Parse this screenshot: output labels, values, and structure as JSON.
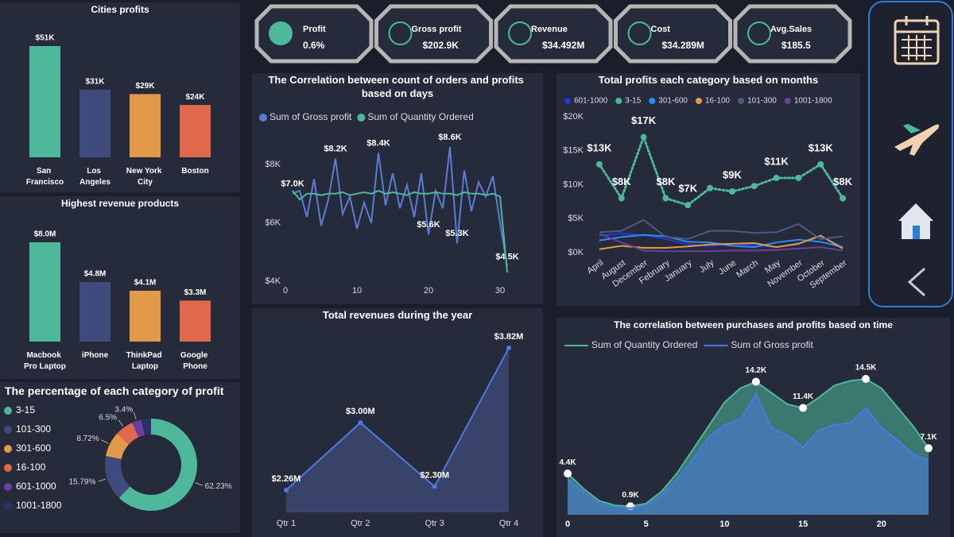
{
  "kpis": [
    {
      "label": "Profit",
      "value": "0.6%"
    },
    {
      "label": "Gross profit",
      "value": "$202.9K"
    },
    {
      "label": "Revenue",
      "value": "$34.492M"
    },
    {
      "label": "Cost",
      "value": "$34.289M"
    },
    {
      "label": "Avg.Sales",
      "value": "$185.5"
    }
  ],
  "chart_data": [
    {
      "type": "bar",
      "title": "Cities profits",
      "categories": [
        "San Francisco",
        "Los Angeles",
        "New York City",
        "Boston"
      ],
      "values": [
        51000,
        31000,
        29000,
        24000
      ],
      "value_labels": [
        "$51K",
        "$31K",
        "$29K",
        "$24K"
      ],
      "colors": [
        "#4db89a",
        "#3e4b7c",
        "#e09a48",
        "#e0694d"
      ]
    },
    {
      "type": "bar",
      "title": "Highest revenue products",
      "categories": [
        "Macbook Pro Laptop",
        "iPhone",
        "ThinkPad Laptop",
        "Google Phone"
      ],
      "values": [
        8000000,
        4800000,
        4100000,
        3300000
      ],
      "value_labels": [
        "$8.0M",
        "$4.8M",
        "$4.1M",
        "$3.3M"
      ],
      "colors": [
        "#4db89a",
        "#3e4b7c",
        "#e09a48",
        "#e0694d"
      ]
    },
    {
      "type": "donut",
      "title": "The percentage of each category of profit",
      "categories": [
        "3-15",
        "101-300",
        "301-600",
        "16-100",
        "601-1000",
        "1001-1800"
      ],
      "values": [
        62.23,
        15.79,
        8.72,
        6.5,
        3.4,
        3.36
      ],
      "value_labels": [
        "62.23%",
        "15.79%",
        "8.72%",
        "6.5%",
        "3.4%",
        null
      ],
      "colors": [
        "#4db89a",
        "#3e4b7c",
        "#e09a48",
        "#e0694d",
        "#6b3fa0",
        "#2c2f66"
      ]
    },
    {
      "type": "line",
      "title": "The Correlation between count of orders and profits based on days",
      "x": [
        1,
        2,
        3,
        4,
        5,
        6,
        7,
        8,
        9,
        10,
        11,
        12,
        13,
        14,
        15,
        16,
        17,
        18,
        19,
        20,
        21,
        22,
        23,
        24,
        25,
        26,
        27,
        28,
        29,
        30,
        31
      ],
      "xlim": [
        0,
        31
      ],
      "xticks": [
        0,
        10,
        20,
        30
      ],
      "ylim": [
        4000,
        9200
      ],
      "yticks": [
        {
          "value": 4000,
          "label": "$4K"
        },
        {
          "value": 6000,
          "label": "$6K"
        },
        {
          "value": 8000,
          "label": "$8K"
        }
      ],
      "series": [
        {
          "name": "Sum of Gross profit",
          "color": "#5b7bd5",
          "values": [
            7000,
            7100,
            6200,
            7500,
            5900,
            6800,
            8200,
            6300,
            6900,
            5800,
            6700,
            6000,
            8400,
            6600,
            7700,
            6500,
            7300,
            6200,
            7700,
            5600,
            7100,
            6500,
            8600,
            5300,
            7800,
            6400,
            7400,
            6900,
            7600,
            6000,
            4500
          ],
          "value_labels": [
            "$7.0K",
            null,
            null,
            null,
            null,
            null,
            "$8.2K",
            null,
            null,
            null,
            null,
            null,
            "$8.4K",
            null,
            null,
            null,
            null,
            null,
            null,
            "$5.6K",
            null,
            null,
            "$8.6K",
            "$5.3K",
            null,
            null,
            null,
            null,
            null,
            null,
            "$4.5K"
          ]
        },
        {
          "name": "Sum of Quantity Ordered",
          "color": "#4db89a",
          "values": [
            7100,
            6800,
            7000,
            7000,
            6950,
            7000,
            7000,
            7050,
            6950,
            7000,
            7050,
            7000,
            7100,
            7000,
            7050,
            7000,
            6950,
            7050,
            7000,
            7000,
            7050,
            7000,
            7000,
            6950,
            7050,
            7000,
            7000,
            6950,
            7000,
            6900,
            4300
          ]
        }
      ]
    },
    {
      "type": "line",
      "title": "Total profits each category based on months",
      "categories": [
        "April",
        "August",
        "December",
        "February",
        "January",
        "July",
        "June",
        "March",
        "May",
        "November",
        "October",
        "September"
      ],
      "ylim": [
        0,
        20000
      ],
      "yticks": [
        {
          "value": 0,
          "label": "$0K"
        },
        {
          "value": 5000,
          "label": "$5K"
        },
        {
          "value": 10000,
          "label": "$10K"
        },
        {
          "value": 15000,
          "label": "$15K"
        },
        {
          "value": 20000,
          "label": "$20K"
        }
      ],
      "series": [
        {
          "name": "601-1000",
          "color": "#2338d6",
          "values": [
            2500,
            2800,
            2600,
            2000,
            1200,
            900,
            1300,
            1100,
            800,
            1400,
            2300,
            900
          ]
        },
        {
          "name": "3-15",
          "color": "#4db89a",
          "line_style": "dotted",
          "values": [
            13000,
            8000,
            17000,
            8000,
            7000,
            9500,
            9000,
            9800,
            11000,
            11000,
            13000,
            8000
          ],
          "value_labels": [
            "$13K",
            "$8K",
            "$17K",
            "$8K",
            "$7K",
            null,
            "$9K",
            null,
            "$11K",
            null,
            "$13K",
            "$8K"
          ]
        },
        {
          "name": "301-600",
          "color": "#2d8cf0",
          "values": [
            1800,
            2300,
            2600,
            2400,
            1600,
            1500,
            1000,
            800,
            1500,
            1900,
            1600,
            800
          ]
        },
        {
          "name": "16-100",
          "color": "#e09a48",
          "values": [
            500,
            1000,
            700,
            700,
            900,
            1200,
            1300,
            1400,
            800,
            1300,
            2500,
            600
          ]
        },
        {
          "name": "101-300",
          "color": "#4c5a80",
          "values": [
            3000,
            3200,
            4800,
            2300,
            2000,
            3200,
            3200,
            2900,
            3000,
            4200,
            2000,
            2400
          ]
        },
        {
          "name": "1001-1800",
          "color": "#6b3fa0",
          "values": [
            2800,
            1500,
            300,
            200,
            200,
            200,
            300,
            300,
            400,
            600,
            800,
            300
          ]
        }
      ]
    },
    {
      "type": "area",
      "title": "Total revenues during the year",
      "categories": [
        "Qtr 1",
        "Qtr 2",
        "Qtr 3",
        "Qtr 4"
      ],
      "values": [
        2260000,
        3000000,
        2300000,
        3820000
      ],
      "value_labels": [
        "$2.26M",
        "$3.00M",
        "$2.30M",
        "$3.82M"
      ],
      "color": "#4a7ae0"
    },
    {
      "type": "area",
      "title": "The correlation between purchases and profits based on time",
      "x": [
        0,
        1,
        2,
        3,
        4,
        5,
        6,
        7,
        8,
        9,
        10,
        11,
        12,
        13,
        14,
        15,
        16,
        17,
        18,
        19,
        20,
        21,
        22,
        23
      ],
      "xlim": [
        0,
        23
      ],
      "xticks": [
        0,
        5,
        10,
        15,
        20
      ],
      "series": [
        {
          "name": "Sum of Quantity Ordered",
          "color": "#4db89a",
          "values": [
            4400,
            2800,
            1500,
            1000,
            900,
            1200,
            2500,
            4500,
            7000,
            9500,
            12000,
            13500,
            14200,
            13000,
            11800,
            11400,
            12500,
            13800,
            14300,
            14500,
            13500,
            11500,
            9500,
            7100
          ],
          "value_labels": [
            "4.4K",
            null,
            null,
            null,
            "0.9K",
            null,
            null,
            null,
            null,
            null,
            null,
            null,
            "14.2K",
            null,
            null,
            "11.4K",
            null,
            null,
            null,
            "14.5K",
            null,
            null,
            null,
            "7.1K"
          ]
        },
        {
          "name": "Sum of Gross profit",
          "color": "#4a7ae0",
          "values": [
            3800,
            2400,
            1200,
            800,
            700,
            1000,
            2100,
            3900,
            6000,
            8300,
            9600,
            10200,
            12900,
            9300,
            8500,
            7200,
            9000,
            9600,
            9800,
            11400,
            9300,
            8000,
            6500,
            5800
          ]
        }
      ]
    }
  ]
}
